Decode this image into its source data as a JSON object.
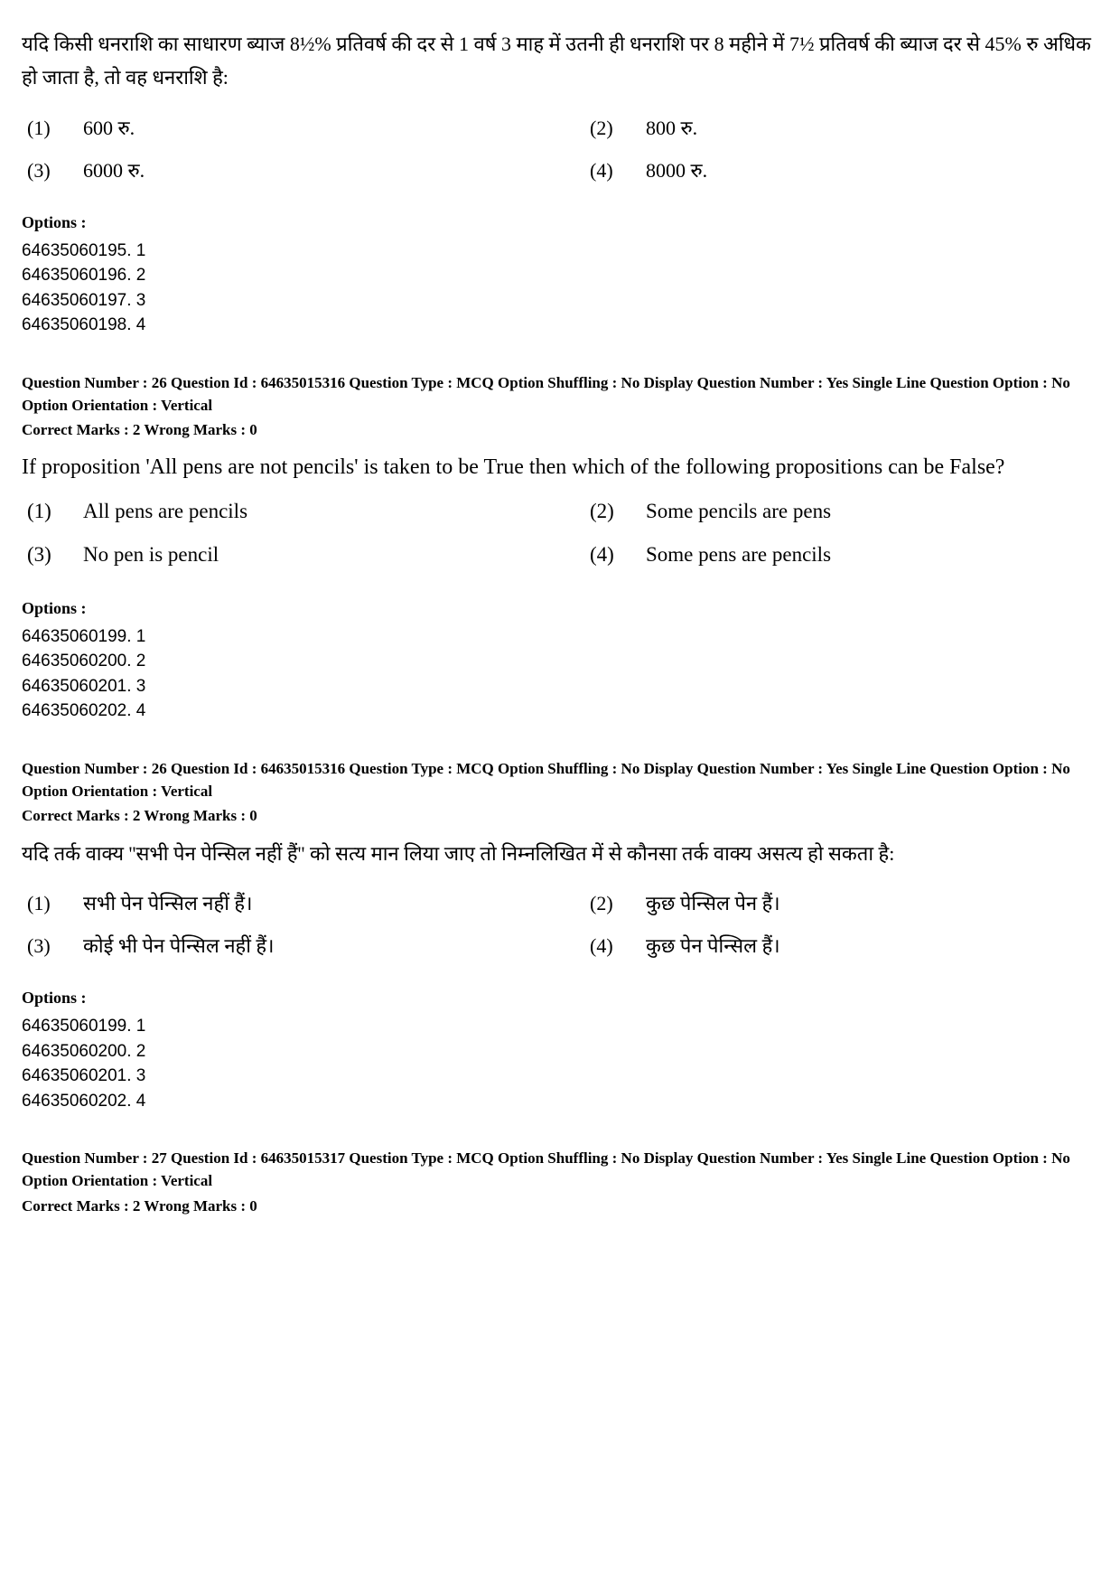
{
  "q25_hi": {
    "text": "यदि किसी धनराशि का साधारण ब्याज 8½% प्रतिवर्ष की दर से 1 वर्ष 3 माह में उतनी ही धनराशि पर 8 महीने में 7½ प्रतिवर्ष की ब्याज दर से 45% रु अधिक हो जाता है, तो वह धनराशि है:",
    "answers": [
      {
        "n": "(1)",
        "t": "600 रु."
      },
      {
        "n": "(2)",
        "t": "800 रु."
      },
      {
        "n": "(3)",
        "t": "6000 रु."
      },
      {
        "n": "(4)",
        "t": "8000 रु."
      }
    ],
    "opt_label": "Options :",
    "options": [
      "64635060195. 1",
      "64635060196. 2",
      "64635060197. 3",
      "64635060198. 4"
    ]
  },
  "q26_en": {
    "meta": "Question Number : 26  Question Id : 64635015316  Question Type : MCQ  Option Shuffling : No  Display Question Number : Yes  Single Line Question Option : No  Option Orientation : Vertical",
    "marks": "Correct Marks : 2  Wrong Marks : 0",
    "text": "If proposition 'All pens are not pencils' is taken to be True then which of the following propositions can be False?",
    "answers": [
      {
        "n": "(1)",
        "t": "All pens are pencils"
      },
      {
        "n": "(2)",
        "t": "Some pencils are pens"
      },
      {
        "n": "(3)",
        "t": "No pen is pencil"
      },
      {
        "n": "(4)",
        "t": "Some pens are pencils"
      }
    ],
    "opt_label": "Options :",
    "options": [
      "64635060199. 1",
      "64635060200. 2",
      "64635060201. 3",
      "64635060202. 4"
    ]
  },
  "q26_hi": {
    "meta": "Question Number : 26  Question Id : 64635015316  Question Type : MCQ  Option Shuffling : No  Display Question Number : Yes  Single Line Question Option : No  Option Orientation : Vertical",
    "marks": "Correct Marks : 2  Wrong Marks : 0",
    "text": "यदि तर्क वाक्य ''सभी पेन पेन्सिल नहीं हैं'' को सत्य मान लिया जाए तो निम्नलिखित में से कौनसा तर्क वाक्य असत्य हो सकता है:",
    "answers": [
      {
        "n": "(1)",
        "t": "सभी पेन पेन्सिल नहीं हैं।"
      },
      {
        "n": "(2)",
        "t": "कुछ पेन्सिल पेन हैं।"
      },
      {
        "n": "(3)",
        "t": "कोई भी पेन पेन्सिल नहीं हैं।"
      },
      {
        "n": "(4)",
        "t": "कुछ पेन पेन्सिल हैं।"
      }
    ],
    "opt_label": "Options :",
    "options": [
      "64635060199. 1",
      "64635060200. 2",
      "64635060201. 3",
      "64635060202. 4"
    ]
  },
  "q27": {
    "meta": "Question Number : 27  Question Id : 64635015317  Question Type : MCQ  Option Shuffling : No  Display Question Number : Yes  Single Line Question Option : No  Option Orientation : Vertical",
    "marks": "Correct Marks : 2  Wrong Marks : 0"
  }
}
